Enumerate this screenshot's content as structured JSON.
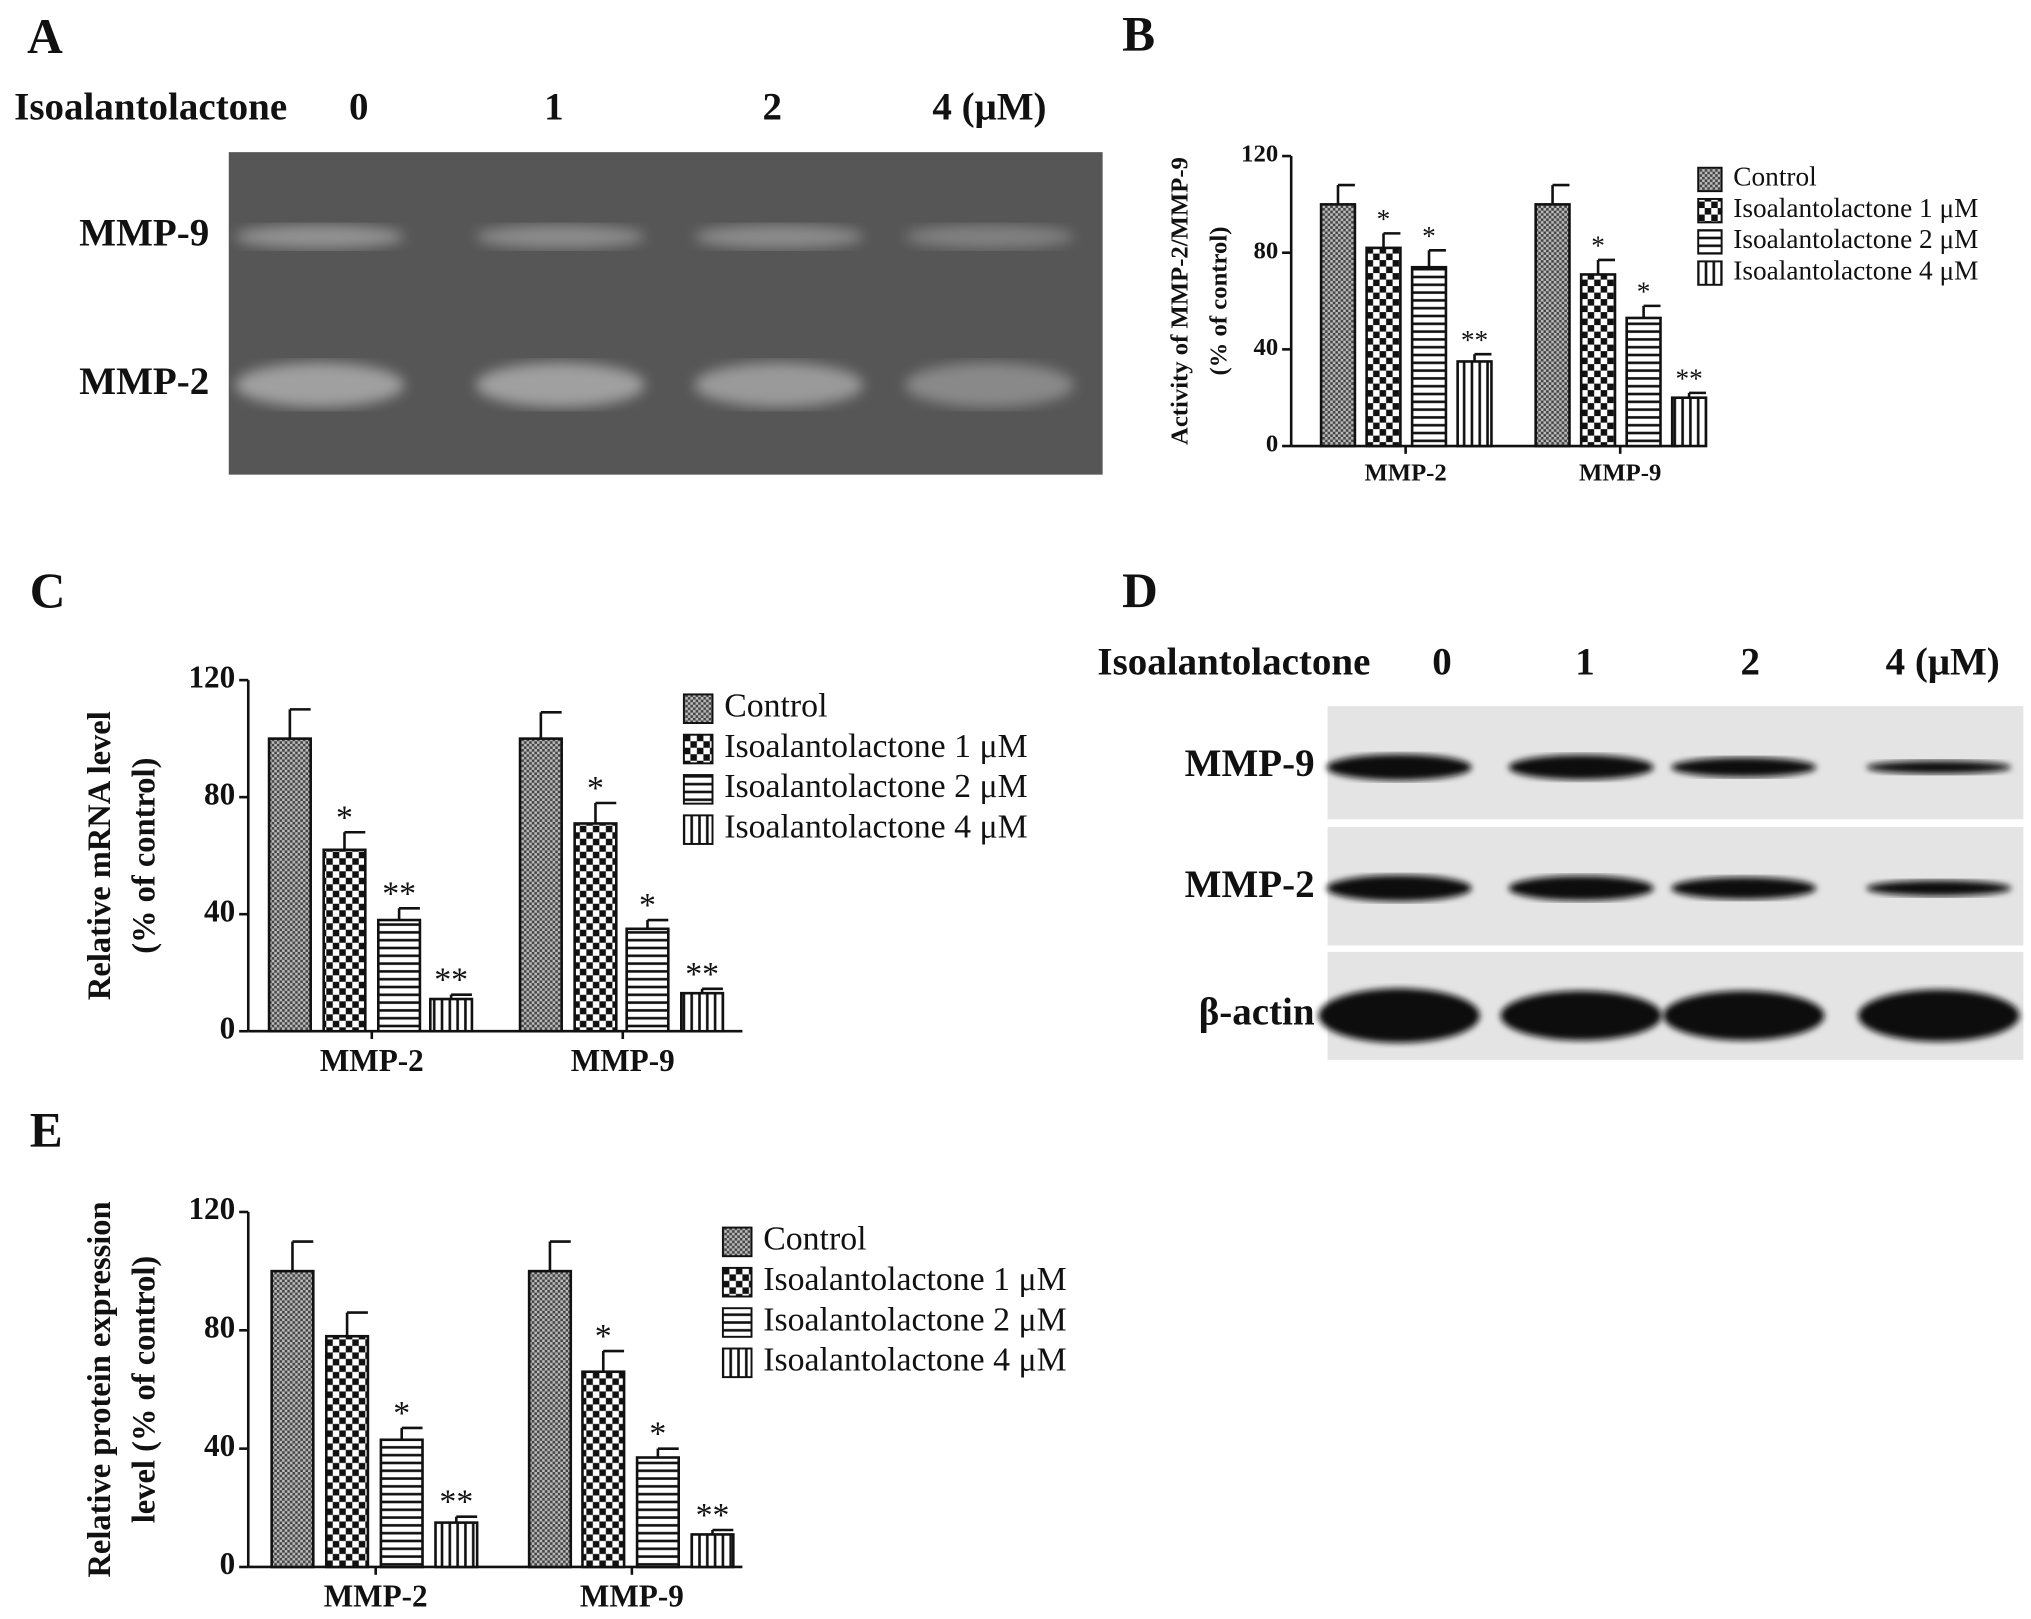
{
  "chart_data": [
    {
      "panel": "B",
      "type": "bar",
      "ylabel": [
        "Activity of MMP-2/MMP-9",
        "(% of control)"
      ],
      "categories": [
        "MMP-2",
        "MMP-9"
      ],
      "ylim": [
        0,
        120
      ],
      "yticks": [
        0,
        40,
        80,
        120
      ],
      "series": [
        {
          "name": "Control",
          "pattern": "fine",
          "values": [
            100,
            100
          ],
          "errors": [
            8,
            8
          ],
          "annotations": [
            null,
            null
          ]
        },
        {
          "name": "Isoalantolactone 1 μM",
          "pattern": "checker",
          "values": [
            82,
            71
          ],
          "errors": [
            6,
            6
          ],
          "annotations": [
            "*",
            "*"
          ]
        },
        {
          "name": "Isoalantolactone 2 μM",
          "pattern": "hlines",
          "values": [
            74,
            53
          ],
          "errors": [
            7,
            5
          ],
          "annotations": [
            "*",
            "*"
          ]
        },
        {
          "name": "Isoalantolactone 4 μM",
          "pattern": "vlines",
          "values": [
            35,
            20
          ],
          "errors": [
            3,
            2
          ],
          "annotations": [
            "**",
            "**"
          ]
        }
      ]
    },
    {
      "panel": "C",
      "type": "bar",
      "ylabel": [
        "Relative mRNA level",
        "(% of control)"
      ],
      "categories": [
        "MMP-2",
        "MMP-9"
      ],
      "ylim": [
        0,
        120
      ],
      "yticks": [
        0,
        40,
        80,
        120
      ],
      "series": [
        {
          "name": "Control",
          "pattern": "fine",
          "values": [
            100,
            100
          ],
          "errors": [
            10,
            9
          ],
          "annotations": [
            null,
            null
          ]
        },
        {
          "name": "Isoalantolactone 1 μM",
          "pattern": "checker",
          "values": [
            62,
            71
          ],
          "errors": [
            6,
            7
          ],
          "annotations": [
            "*",
            "*"
          ]
        },
        {
          "name": "Isoalantolactone 2 μM",
          "pattern": "hlines",
          "values": [
            38,
            35
          ],
          "errors": [
            4,
            3
          ],
          "annotations": [
            "**",
            "*"
          ]
        },
        {
          "name": "Isoalantolactone 4 μM",
          "pattern": "vlines",
          "values": [
            11,
            13
          ],
          "errors": [
            1.5,
            1.5
          ],
          "annotations": [
            "**",
            "**"
          ]
        }
      ]
    },
    {
      "panel": "E",
      "type": "bar",
      "ylabel": [
        "Relative protein expression",
        "level (% of control)"
      ],
      "categories": [
        "MMP-2",
        "MMP-9"
      ],
      "ylim": [
        0,
        120
      ],
      "yticks": [
        0,
        40,
        80,
        120
      ],
      "series": [
        {
          "name": "Control",
          "pattern": "fine",
          "values": [
            100,
            100
          ],
          "errors": [
            10,
            10
          ],
          "annotations": [
            null,
            null
          ]
        },
        {
          "name": "Isoalantolactone 1 μM",
          "pattern": "checker",
          "values": [
            78,
            66
          ],
          "errors": [
            8,
            7
          ],
          "annotations": [
            null,
            "*"
          ]
        },
        {
          "name": "Isoalantolactone 2 μM",
          "pattern": "hlines",
          "values": [
            43,
            37
          ],
          "errors": [
            4,
            3
          ],
          "annotations": [
            "*",
            "*"
          ]
        },
        {
          "name": "Isoalantolactone 4 μM",
          "pattern": "vlines",
          "values": [
            15,
            11
          ],
          "errors": [
            2,
            1.5
          ],
          "annotations": [
            "**",
            "**"
          ]
        }
      ]
    }
  ],
  "blots": [
    {
      "panel": "A",
      "treatment": "Isoalantolactone",
      "doses": [
        "0",
        "1",
        "2",
        "4 (μM)"
      ],
      "bands": [
        "MMP-9",
        "MMP-2"
      ]
    },
    {
      "panel": "D",
      "treatment": "Isoalantolactone",
      "doses": [
        "0",
        "1",
        "2",
        "4 (μM)"
      ],
      "bands": [
        "MMP-9",
        "MMP-2",
        "β-actin"
      ]
    }
  ]
}
